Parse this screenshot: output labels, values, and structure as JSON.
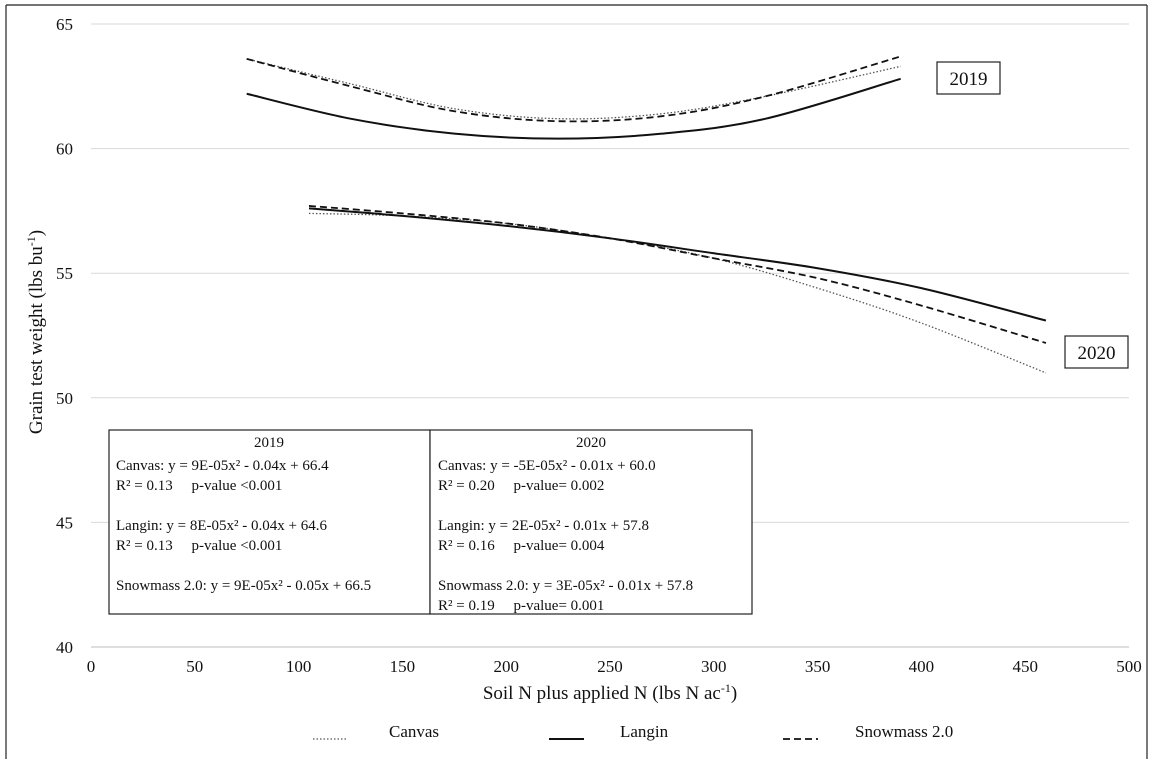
{
  "chart_data": {
    "type": "line",
    "xlabel": "Soil N plus applied N (lbs N ac",
    "xlabel_sup": "-1",
    "xlabel_end": ")",
    "ylabel": "Grain test weight (lbs bu",
    "ylabel_sup": "-1",
    "ylabel_end": ")",
    "xlim": [
      0,
      500
    ],
    "ylim": [
      40,
      65
    ],
    "x_ticks": [
      "0",
      "50",
      "100",
      "150",
      "200",
      "250",
      "300",
      "350",
      "400",
      "450",
      "500"
    ],
    "y_ticks": [
      "40",
      "45",
      "50",
      "55",
      "60",
      "65"
    ],
    "grid": true,
    "legend_placement": "bottom",
    "legend": [
      {
        "name": "Canvas",
        "style": "dotted"
      },
      {
        "name": "Langin",
        "style": "solid"
      },
      {
        "name": "Snowmass 2.0",
        "style": "dashed"
      }
    ],
    "series": [
      {
        "name": "Canvas",
        "group": "2019",
        "style": "dotted",
        "x": [
          75,
          125,
          175,
          225,
          275,
          325,
          390
        ],
        "y": [
          63.6,
          62.6,
          61.6,
          61.2,
          61.4,
          62.1,
          63.3
        ]
      },
      {
        "name": "Langin",
        "group": "2019",
        "style": "solid",
        "x": [
          75,
          125,
          175,
          225,
          275,
          325,
          390
        ],
        "y": [
          62.2,
          61.2,
          60.6,
          60.4,
          60.6,
          61.2,
          62.8
        ]
      },
      {
        "name": "Snowmass 2.0",
        "group": "2019",
        "style": "dashed",
        "x": [
          75,
          125,
          175,
          225,
          275,
          325,
          390
        ],
        "y": [
          63.6,
          62.5,
          61.5,
          61.1,
          61.3,
          62.1,
          63.7
        ]
      },
      {
        "name": "Canvas",
        "group": "2020",
        "style": "dotted",
        "x": [
          105,
          150,
          200,
          250,
          300,
          350,
          400,
          460
        ],
        "y": [
          57.4,
          57.3,
          57.0,
          56.4,
          55.6,
          54.4,
          53.0,
          51.0
        ]
      },
      {
        "name": "Langin",
        "group": "2020",
        "style": "solid",
        "x": [
          105,
          150,
          200,
          250,
          300,
          350,
          400,
          460
        ],
        "y": [
          57.6,
          57.3,
          56.9,
          56.4,
          55.8,
          55.2,
          54.4,
          53.1
        ]
      },
      {
        "name": "Snowmass 2.0",
        "group": "2020",
        "style": "dashed",
        "x": [
          105,
          150,
          200,
          250,
          300,
          350,
          400,
          460
        ],
        "y": [
          57.7,
          57.4,
          57.0,
          56.4,
          55.6,
          54.8,
          53.7,
          52.2
        ]
      }
    ],
    "year_labels": [
      "2019",
      "2020"
    ],
    "equations": {
      "2019": {
        "header": "2019",
        "lines": [
          "Canvas: y = 9E-05x² - 0.04x + 66.4",
          "R² = 0.13     p-value <0.001",
          "",
          "Langin: y = 8E-05x² - 0.04x + 64.6",
          "R² = 0.13     p-value <0.001",
          "",
          "Snowmass 2.0: y = 9E-05x² - 0.05x + 66.5"
        ]
      },
      "2020": {
        "header": "2020",
        "lines": [
          "Canvas: y = -5E-05x² - 0.01x + 60.0",
          "R² = 0.20     p-value= 0.002",
          "",
          "Langin: y = 2E-05x² - 0.01x + 57.8",
          "R² = 0.16     p-value= 0.004",
          "",
          "Snowmass 2.0: y = 3E-05x² - 0.01x + 57.8",
          "R² = 0.19     p-value= 0.001"
        ]
      }
    }
  }
}
